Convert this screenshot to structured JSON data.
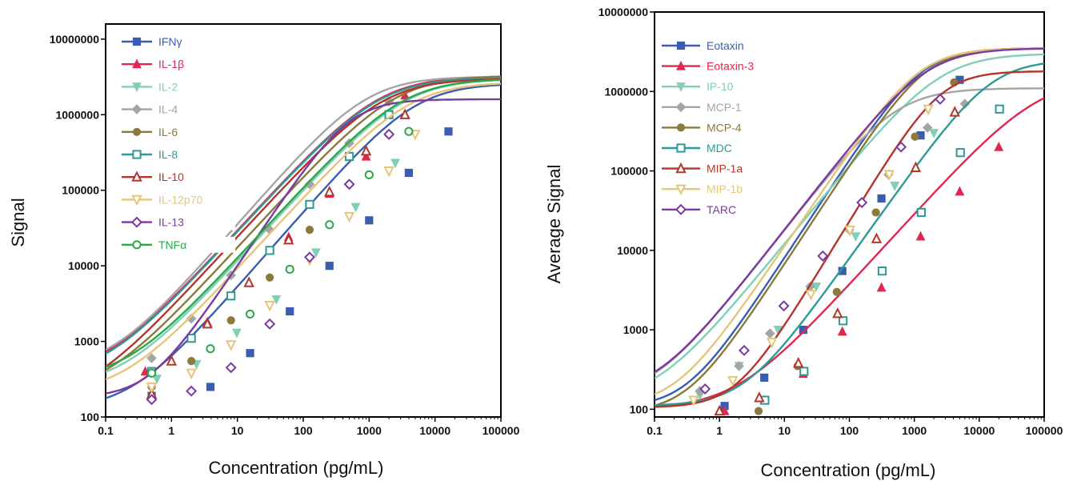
{
  "chart_data": [
    {
      "type": "line",
      "title": "",
      "xlabel": "Concentration (pg/mL)",
      "ylabel": "Signal",
      "xscale": "log",
      "yscale": "log",
      "xlim": [
        0.1,
        100000
      ],
      "ylim": [
        100,
        10000000
      ],
      "x_ticks": [
        "0.1",
        "1",
        "10",
        "100",
        "1000",
        "10000",
        "100000"
      ],
      "y_ticks": [
        "100",
        "1000",
        "10000",
        "100000",
        "1000000",
        "10000000"
      ],
      "legend_position": "top-left",
      "grid": false,
      "series": [
        {
          "name": "IFNγ",
          "color": "#3a5db0",
          "marker": "square-filled",
          "x": [
            0.5,
            3.9,
            15.6,
            62.5,
            250,
            1000,
            4000,
            16000
          ],
          "y": [
            190,
            250,
            700,
            2500,
            10000,
            40000,
            170000,
            600000
          ],
          "curve": {
            "bottom": 125,
            "top": 2600000,
            "ec50": 5000,
            "slope": 1.0
          }
        },
        {
          "name": "IL-1β",
          "color": "#e0284f",
          "marker": "triangle-up-filled",
          "x": [
            0.4,
            1.0,
            3.5,
            15,
            60,
            250,
            900,
            3500
          ],
          "y": [
            400,
            550,
            1800,
            6000,
            24000,
            90000,
            280000,
            1800000
          ],
          "curve": {
            "bottom": 360,
            "top": 3200000,
            "ec50": 1400,
            "slope": 0.95
          }
        },
        {
          "name": "IL-2",
          "color": "#7fd0b4",
          "marker": "triangle-down-filled",
          "x": [
            0.6,
            2.4,
            9.8,
            39,
            156,
            625,
            2500
          ],
          "y": [
            320,
            500,
            1300,
            3600,
            15000,
            60000,
            230000
          ],
          "curve": {
            "bottom": 250,
            "top": 3000000,
            "ec50": 3500,
            "slope": 0.95
          }
        },
        {
          "name": "IL-4",
          "color": "#a5a5a5",
          "marker": "diamond-filled",
          "x": [
            0.5,
            2,
            8,
            31,
            125,
            500,
            2000
          ],
          "y": [
            600,
            2000,
            7500,
            30000,
            120000,
            420000,
            1500000
          ],
          "curve": {
            "bottom": 420,
            "top": 3200000,
            "ec50": 900,
            "slope": 1.0
          }
        },
        {
          "name": "IL-6",
          "color": "#8b7a3a",
          "marker": "circle-filled",
          "x": [
            0.5,
            2,
            8,
            31,
            125,
            500,
            2000
          ],
          "y": [
            250,
            550,
            1900,
            7000,
            30000,
            120000,
            550000
          ],
          "curve": {
            "bottom": 200,
            "top": 3300000,
            "ec50": 2500,
            "slope": 0.95
          }
        },
        {
          "name": "IL-8",
          "color": "#2f9898",
          "marker": "square-open",
          "x": [
            0.5,
            2,
            8,
            31,
            125,
            500,
            2000
          ],
          "y": [
            400,
            1100,
            4000,
            16000,
            65000,
            280000,
            1000000
          ],
          "curve": {
            "bottom": 330,
            "top": 3100000,
            "ec50": 1400,
            "slope": 0.95
          }
        },
        {
          "name": "IL-10",
          "color": "#b3362b",
          "marker": "triangle-up-open",
          "x": [
            0.5,
            1.0,
            3.5,
            15,
            60,
            250,
            900,
            3500
          ],
          "y": [
            200,
            550,
            1700,
            6000,
            22000,
            95000,
            330000,
            1000000
          ],
          "curve": {
            "bottom": 160,
            "top": 3000000,
            "ec50": 1600,
            "slope": 0.95
          }
        },
        {
          "name": "IL-12p70",
          "color": "#e5c57a",
          "marker": "triangle-down-open",
          "x": [
            0.5,
            2,
            8,
            31,
            125,
            500,
            2000,
            5000
          ],
          "y": [
            250,
            380,
            900,
            3000,
            12000,
            45000,
            180000,
            550000
          ],
          "curve": {
            "bottom": 200,
            "top": 2700000,
            "ec50": 4000,
            "slope": 0.95
          }
        },
        {
          "name": "IL-13",
          "color": "#7b3aa0",
          "marker": "diamond-open",
          "x": [
            0.5,
            2,
            8,
            31,
            125,
            500,
            2000
          ],
          "y": [
            170,
            220,
            450,
            1700,
            13000,
            120000,
            550000
          ],
          "curve": {
            "bottom": 180,
            "top": 1600000,
            "ec50": 500,
            "slope": 1.3
          }
        },
        {
          "name": "TNFα",
          "color": "#2aa84a",
          "marker": "circle-open",
          "x": [
            0.5,
            3.9,
            15.6,
            62.5,
            250,
            1000,
            4000
          ],
          "y": [
            380,
            800,
            2300,
            9000,
            35000,
            160000,
            600000
          ],
          "curve": {
            "bottom": 300,
            "top": 3000000,
            "ec50": 3200,
            "slope": 0.95
          }
        }
      ]
    },
    {
      "type": "line",
      "title": "",
      "xlabel": "Concentration (pg/mL)",
      "ylabel": "Average Signal",
      "xscale": "log",
      "yscale": "log",
      "xlim": [
        0.1,
        100000
      ],
      "ylim": [
        80,
        10000000
      ],
      "x_ticks": [
        "0.1",
        "1",
        "10",
        "100",
        "1000",
        "10000",
        "100000"
      ],
      "y_ticks": [
        "100",
        "1000",
        "10000",
        "100000",
        "1000000",
        "10000000"
      ],
      "legend_position": "top-left",
      "grid": false,
      "series": [
        {
          "name": "Eotaxin",
          "color": "#3a5db0",
          "marker": "square-filled",
          "x": [
            1.2,
            4.9,
            19.5,
            78,
            312,
            1250,
            5000
          ],
          "y": [
            110,
            250,
            1000,
            5500,
            45000,
            280000,
            1400000
          ],
          "curve": {
            "bottom": 105,
            "top": 3500000,
            "ec50": 1300,
            "slope": 1.25
          }
        },
        {
          "name": "Eotaxin-3",
          "color": "#e0284f",
          "marker": "triangle-up-filled",
          "x": [
            1.2,
            4.9,
            19.5,
            78,
            312,
            1250,
            5000,
            20000
          ],
          "y": [
            95,
            130,
            280,
            950,
            3400,
            15000,
            55000,
            200000
          ],
          "curve": {
            "bottom": 100,
            "top": 1500000,
            "ec50": 80000,
            "slope": 0.9
          }
        },
        {
          "name": "IP-10",
          "color": "#7fd0b4",
          "marker": "triangle-down-filled",
          "x": [
            0.5,
            2,
            8,
            31,
            125,
            500,
            2000
          ],
          "y": [
            150,
            350,
            1000,
            3500,
            15000,
            65000,
            300000
          ],
          "curve": {
            "bottom": 125,
            "top": 3000000,
            "ec50": 2500,
            "slope": 1.0
          }
        },
        {
          "name": "MCP-1",
          "color": "#a5a5a5",
          "marker": "diamond-filled",
          "x": [
            0.5,
            2,
            6,
            25,
            100,
            400,
            1600,
            6000
          ],
          "y": [
            170,
            350,
            900,
            3500,
            18000,
            90000,
            350000,
            700000
          ],
          "curve": {
            "bottom": 140,
            "top": 1100000,
            "ec50": 500,
            "slope": 1.05
          }
        },
        {
          "name": "MCP-4",
          "color": "#8b7a3a",
          "marker": "circle-filled",
          "x": [
            4,
            16,
            64,
            256,
            1024,
            4096
          ],
          "y": [
            95,
            350,
            3000,
            30000,
            270000,
            1300000
          ],
          "curve": {
            "bottom": 90,
            "top": 3500000,
            "ec50": 1500,
            "slope": 1.25
          }
        },
        {
          "name": "MDC",
          "color": "#2f9898",
          "marker": "square-open",
          "x": [
            5,
            20,
            80,
            320,
            1280,
            5120,
            20480
          ],
          "y": [
            130,
            300,
            1300,
            5500,
            30000,
            170000,
            600000
          ],
          "curve": {
            "bottom": 110,
            "top": 2500000,
            "ec50": 15000,
            "slope": 1.15
          }
        },
        {
          "name": "MIP-1a",
          "color": "#b3362b",
          "marker": "triangle-up-open",
          "x": [
            1.0,
            4.1,
            16.4,
            66,
            262,
            1050,
            4200
          ],
          "y": [
            95,
            140,
            380,
            1600,
            14000,
            110000,
            550000
          ],
          "curve": {
            "bottom": 105,
            "top": 1800000,
            "ec50": 2500,
            "slope": 1.35
          }
        },
        {
          "name": "MIP-1b",
          "color": "#e5c57a",
          "marker": "triangle-down-open",
          "x": [
            0.4,
            1.6,
            6.4,
            25.6,
            102,
            410,
            1640
          ],
          "y": [
            130,
            230,
            700,
            2800,
            18000,
            90000,
            600000
          ],
          "curve": {
            "bottom": 110,
            "top": 3500000,
            "ec50": 1200,
            "slope": 1.2
          }
        },
        {
          "name": "TARC",
          "color": "#7b3aa0",
          "marker": "diamond-open",
          "x": [
            0.6,
            2.4,
            9.8,
            39,
            156,
            625,
            2500
          ],
          "y": [
            180,
            550,
            2000,
            8500,
            40000,
            200000,
            800000
          ],
          "curve": {
            "bottom": 150,
            "top": 3500000,
            "ec50": 1500,
            "slope": 1.05
          }
        }
      ]
    }
  ]
}
